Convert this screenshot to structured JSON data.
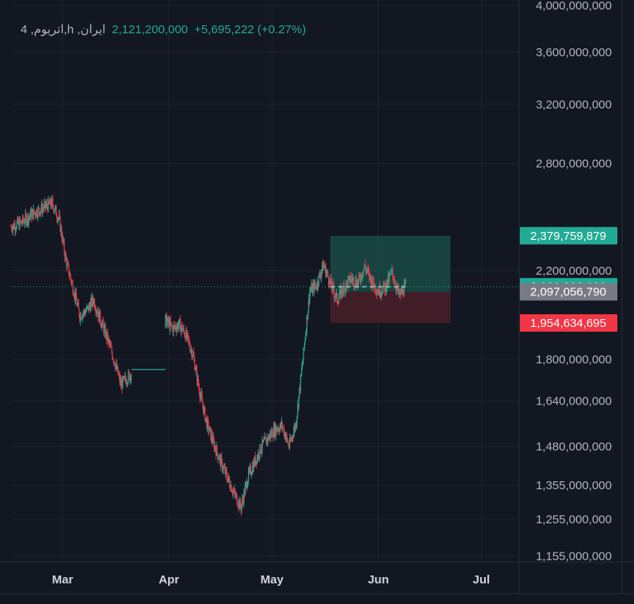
{
  "legend": {
    "symbol": "4 ,اتریوم,h ,ایران",
    "price": "2,121,200,000",
    "change": "+5,695,222 (+0.27%)"
  },
  "colors": {
    "background": "#131722",
    "grid": "#1f2330",
    "text": "#b2b5be",
    "up": "#22ab94",
    "down": "#f23645",
    "neutral_badge": "#787b86",
    "profit_zone": "#1a4a44",
    "loss_zone": "#4a1f28"
  },
  "chart_data": {
    "type": "candlestick",
    "y_axis_scale": "log",
    "ylim": [
      1140000000,
      4050000000
    ],
    "y_ticks": [
      {
        "value": 4000000000,
        "label": "4,000,000,000"
      },
      {
        "value": 3600000000,
        "label": "3,600,000,000"
      },
      {
        "value": 3200000000,
        "label": "3,200,000,000"
      },
      {
        "value": 2800000000,
        "label": "2,800,000,000"
      },
      {
        "value": 2200000000,
        "label": "2,200,000,000"
      },
      {
        "value": 1800000000,
        "label": "1,800,000,000"
      },
      {
        "value": 1640000000,
        "label": "1,640,000,000"
      },
      {
        "value": 1480000000,
        "label": "1,480,000,000"
      },
      {
        "value": 1355000000,
        "label": "1,355,000,000"
      },
      {
        "value": 1255000000,
        "label": "1,255,000,000"
      },
      {
        "value": 1155000000,
        "label": "1,155,000,000"
      }
    ],
    "x_range": [
      "2024-02-15",
      "2024-07-12"
    ],
    "x_ticks": [
      {
        "date": "2024-03-01",
        "label": "Mar"
      },
      {
        "date": "2024-04-01",
        "label": "Apr"
      },
      {
        "date": "2024-05-01",
        "label": "May"
      },
      {
        "date": "2024-06-01",
        "label": "Jun"
      },
      {
        "date": "2024-07-01",
        "label": "Jul"
      }
    ],
    "price_path": [
      [
        "2024-02-15",
        2430000000
      ],
      [
        "2024-02-18",
        2450000000
      ],
      [
        "2024-02-21",
        2500000000
      ],
      [
        "2024-02-24",
        2530000000
      ],
      [
        "2024-02-27",
        2560000000
      ],
      [
        "2024-02-29",
        2470000000
      ],
      [
        "2024-03-02",
        2250000000
      ],
      [
        "2024-03-04",
        2120000000
      ],
      [
        "2024-03-06",
        1990000000
      ],
      [
        "2024-03-08",
        2010000000
      ],
      [
        "2024-03-10",
        2060000000
      ],
      [
        "2024-03-12",
        1970000000
      ],
      [
        "2024-03-14",
        1890000000
      ],
      [
        "2024-03-16",
        1800000000
      ],
      [
        "2024-03-18",
        1700000000
      ],
      [
        "2024-03-20",
        1730000000
      ],
      [
        "2024-03-22",
        1760000000
      ],
      [
        "2024-03-25",
        1760000000
      ],
      [
        "2024-03-30",
        1760000000
      ],
      [
        "2024-03-31",
        1970000000
      ],
      [
        "2024-04-02",
        1930000000
      ],
      [
        "2024-04-04",
        1950000000
      ],
      [
        "2024-04-06",
        1900000000
      ],
      [
        "2024-04-08",
        1820000000
      ],
      [
        "2024-04-10",
        1670000000
      ],
      [
        "2024-04-12",
        1560000000
      ],
      [
        "2024-04-14",
        1490000000
      ],
      [
        "2024-04-16",
        1430000000
      ],
      [
        "2024-04-18",
        1380000000
      ],
      [
        "2024-04-20",
        1330000000
      ],
      [
        "2024-04-22",
        1290000000
      ],
      [
        "2024-04-24",
        1380000000
      ],
      [
        "2024-04-26",
        1430000000
      ],
      [
        "2024-04-28",
        1480000000
      ],
      [
        "2024-04-30",
        1510000000
      ],
      [
        "2024-05-02",
        1540000000
      ],
      [
        "2024-05-04",
        1550000000
      ],
      [
        "2024-05-06",
        1480000000
      ],
      [
        "2024-05-08",
        1560000000
      ],
      [
        "2024-05-10",
        1800000000
      ],
      [
        "2024-05-12",
        2100000000
      ],
      [
        "2024-05-14",
        2130000000
      ],
      [
        "2024-05-16",
        2230000000
      ],
      [
        "2024-05-18",
        2140000000
      ],
      [
        "2024-05-20",
        2060000000
      ],
      [
        "2024-05-22",
        2120000000
      ],
      [
        "2024-05-24",
        2160000000
      ],
      [
        "2024-05-26",
        2140000000
      ],
      [
        "2024-05-28",
        2220000000
      ],
      [
        "2024-05-30",
        2150000000
      ],
      [
        "2024-06-01",
        2100000000
      ],
      [
        "2024-06-03",
        2120000000
      ],
      [
        "2024-06-05",
        2190000000
      ],
      [
        "2024-06-07",
        2080000000
      ],
      [
        "2024-06-09",
        2121200000
      ]
    ],
    "flat_segments": [
      {
        "from": "2024-03-21",
        "to": "2024-03-31",
        "price": 1760000000
      },
      {
        "from": "2024-05-18",
        "to": "2024-06-09",
        "price": 2121200000,
        "dashed": true
      }
    ],
    "current_price": {
      "value": 2121200000,
      "label": "2,121,200,000"
    },
    "position_tool": {
      "from": "2024-05-18",
      "to": "2024-06-22",
      "entry": 2097056790,
      "target": 2379759879,
      "stop": 1954634695,
      "target_label": "2,379,759,879",
      "entry_label": "2,097,056,790",
      "stop_label": "1,954,634,695"
    }
  }
}
